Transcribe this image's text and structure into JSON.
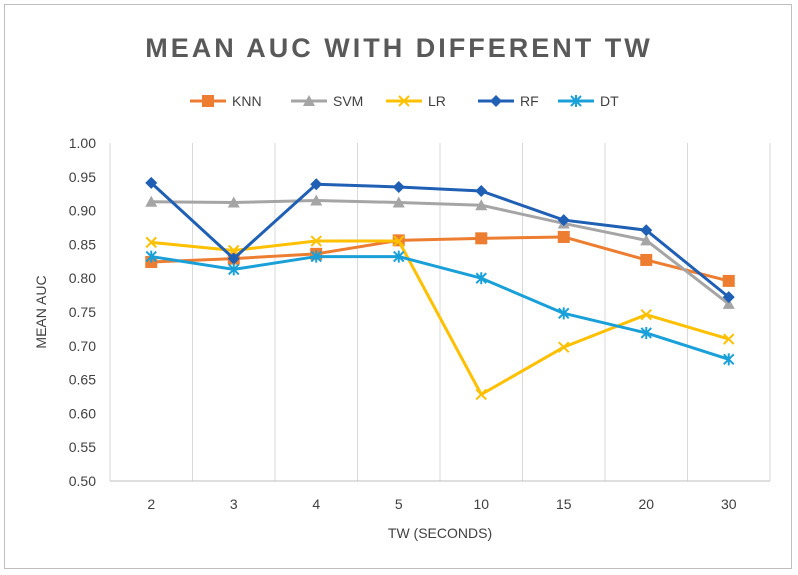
{
  "chart_data": {
    "type": "line",
    "title": "MEAN AUC WITH DIFFERENT TW",
    "xlabel": "TW (SECONDS)",
    "ylabel": "MEAN AUC",
    "categories": [
      "2",
      "3",
      "4",
      "5",
      "10",
      "15",
      "20",
      "30"
    ],
    "ylim": [
      0.5,
      1.0
    ],
    "yticks": [
      "0.50",
      "0.55",
      "0.60",
      "0.65",
      "0.70",
      "0.75",
      "0.80",
      "0.85",
      "0.90",
      "0.95",
      "1.00"
    ],
    "grid": "vertical",
    "legend": "top",
    "series": [
      {
        "name": "KNN",
        "color": "#ED7D31",
        "marker": "square",
        "values": [
          0.824,
          0.829,
          0.836,
          0.856,
          0.859,
          0.861,
          0.827,
          0.796
        ]
      },
      {
        "name": "SVM",
        "color": "#A5A5A5",
        "marker": "triangle",
        "values": [
          0.913,
          0.912,
          0.915,
          0.912,
          0.908,
          0.881,
          0.856,
          0.762
        ]
      },
      {
        "name": "LR",
        "color": "#FFC000",
        "marker": "x",
        "values": [
          0.853,
          0.841,
          0.855,
          0.855,
          0.628,
          0.698,
          0.746,
          0.71
        ]
      },
      {
        "name": "RF",
        "color": "#1F5FB4",
        "marker": "diamond",
        "values": [
          0.941,
          0.829,
          0.939,
          0.935,
          0.929,
          0.886,
          0.871,
          0.772
        ]
      },
      {
        "name": "DT",
        "color": "#1AA0D8",
        "marker": "star",
        "values": [
          0.832,
          0.813,
          0.832,
          0.832,
          0.8,
          0.748,
          0.719,
          0.68
        ]
      }
    ]
  }
}
